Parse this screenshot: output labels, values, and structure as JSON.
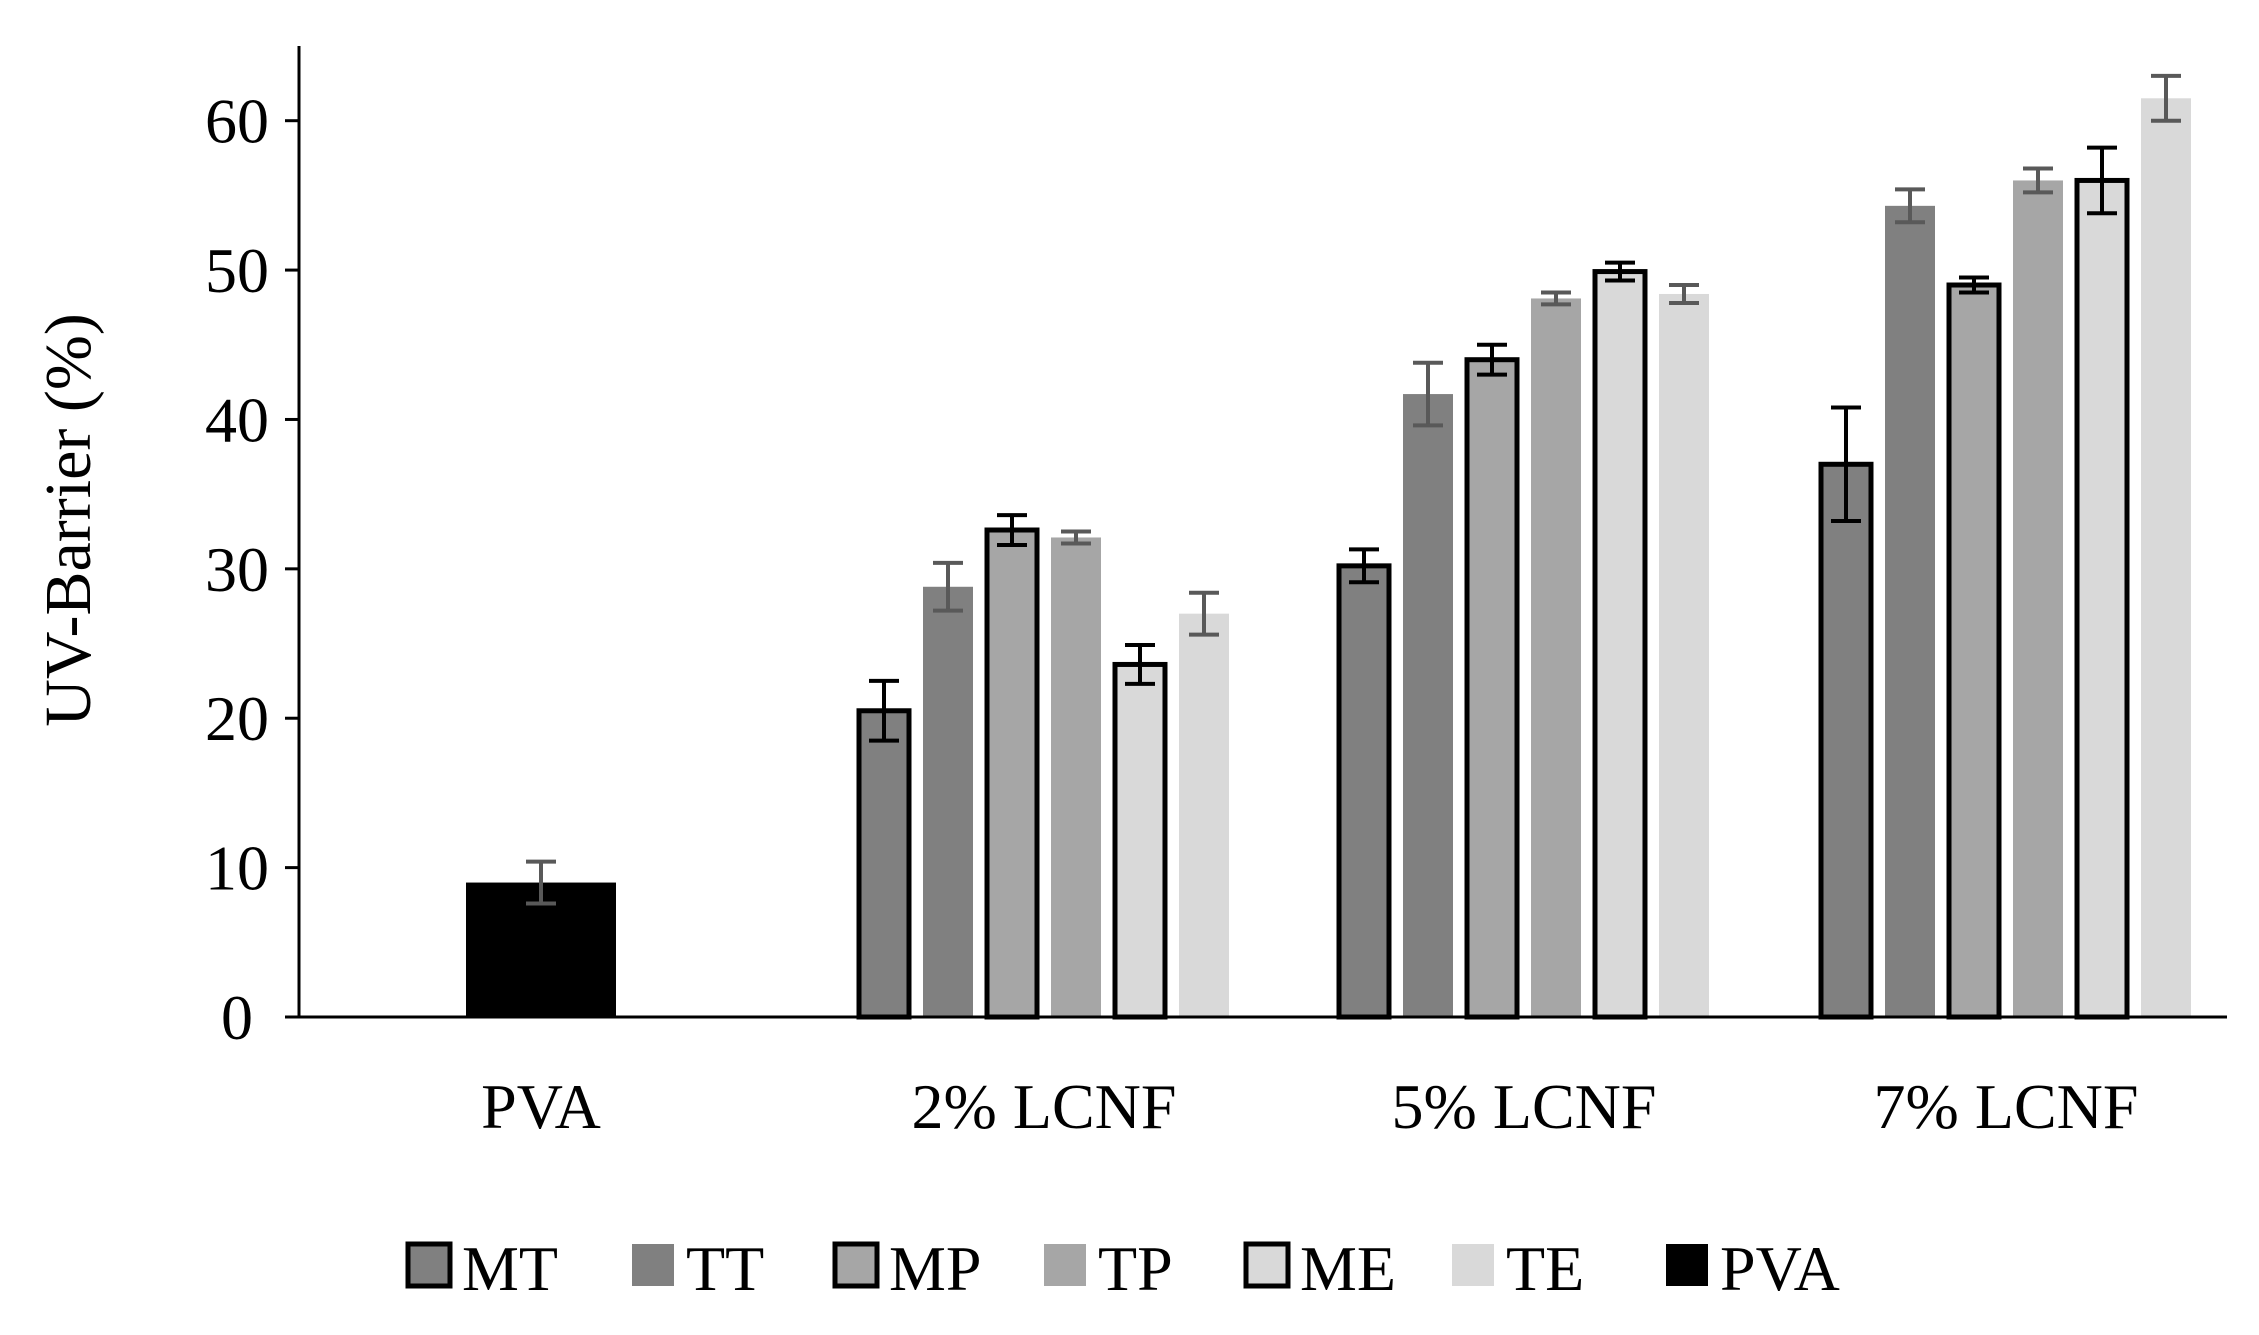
{
  "chart_data": {
    "type": "bar",
    "title": "",
    "xlabel": "",
    "ylabel": "UV-Barrier (%)",
    "ylim": [
      0,
      65
    ],
    "yticks": [
      0,
      10,
      20,
      30,
      40,
      50,
      60
    ],
    "grid": false,
    "legend_position": "bottom",
    "categories": [
      "PVA",
      "2% LCNF",
      "5% LCNF",
      "7% LCNF"
    ],
    "series": [
      {
        "name": "PVA",
        "color": "#000000",
        "outlined": false,
        "values": [
          9.0,
          null,
          null,
          null
        ],
        "errors": [
          1.4,
          null,
          null,
          null
        ]
      },
      {
        "name": "MT",
        "color": "#808080",
        "outlined": true,
        "values": [
          null,
          20.5,
          30.2,
          37.0
        ],
        "errors": [
          null,
          2.0,
          1.1,
          3.8
        ]
      },
      {
        "name": "TT",
        "color": "#808080",
        "outlined": false,
        "values": [
          null,
          28.8,
          41.7,
          54.3
        ],
        "errors": [
          null,
          1.6,
          2.1,
          1.1
        ]
      },
      {
        "name": "MP",
        "color": "#a6a6a6",
        "outlined": true,
        "values": [
          null,
          32.6,
          44.0,
          49.0
        ],
        "errors": [
          null,
          1.0,
          1.0,
          0.5
        ]
      },
      {
        "name": "TP",
        "color": "#a6a6a6",
        "outlined": false,
        "values": [
          null,
          32.1,
          48.1,
          56.0
        ],
        "errors": [
          null,
          0.4,
          0.4,
          0.8
        ]
      },
      {
        "name": "ME",
        "color": "#d9d9d9",
        "outlined": true,
        "values": [
          null,
          23.6,
          49.9,
          56.0
        ],
        "errors": [
          null,
          1.3,
          0.6,
          2.2
        ]
      },
      {
        "name": "TE",
        "color": "#d9d9d9",
        "outlined": false,
        "values": [
          null,
          27.0,
          48.4,
          61.5
        ],
        "errors": [
          null,
          1.4,
          0.6,
          1.5
        ]
      }
    ],
    "legend_order": [
      "MT",
      "TT",
      "MP",
      "TP",
      "ME",
      "TE",
      "PVA"
    ]
  }
}
